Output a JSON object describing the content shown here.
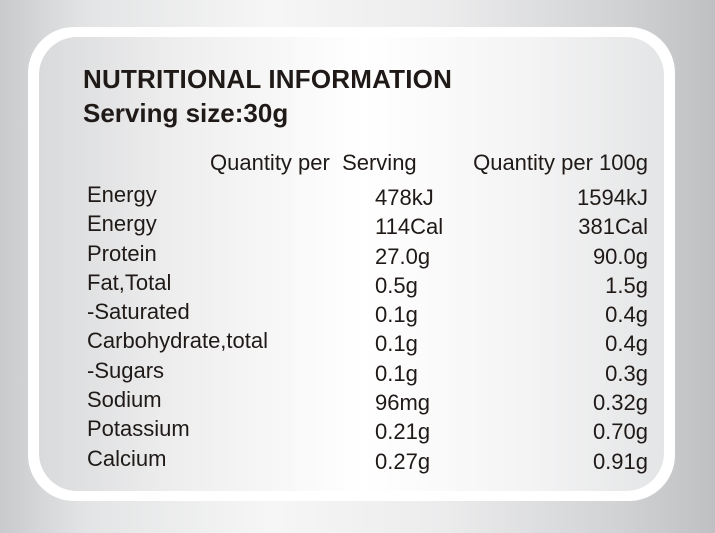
{
  "label": {
    "title": "NUTRITIONAL INFORMATION",
    "serving_size": "Serving size:30g",
    "headers": {
      "per_serving": "Quantity per  Serving",
      "per_100g": "Quantity per 100g"
    },
    "rows": [
      {
        "nutrient": "Energy",
        "per_serving": "478kJ",
        "per_100g": "1594kJ"
      },
      {
        "nutrient": "Energy",
        "per_serving": "114Cal",
        "per_100g": "381Cal"
      },
      {
        "nutrient": "Protein",
        "per_serving": "27.0g",
        "per_100g": "90.0g"
      },
      {
        "nutrient": "Fat,Total",
        "per_serving": "0.5g",
        "per_100g": "1.5g"
      },
      {
        "nutrient": "-Saturated",
        "per_serving": "0.1g",
        "per_100g": "0.4g"
      },
      {
        "nutrient": "Carbohydrate,total",
        "per_serving": "0.1g",
        "per_100g": "0.4g"
      },
      {
        "nutrient": "-Sugars",
        "per_serving": "0.1g",
        "per_100g": "0.3g"
      },
      {
        "nutrient": "Sodium",
        "per_serving": "96mg",
        "per_100g": "0.32g"
      },
      {
        "nutrient": "Potassium",
        "per_serving": "0.21g",
        "per_100g": "0.70g"
      },
      {
        "nutrient": "Calcium",
        "per_serving": "0.27g",
        "per_100g": "0.91g"
      }
    ]
  },
  "colors": {
    "text": "#1f1a17",
    "card": "#ffffff"
  }
}
